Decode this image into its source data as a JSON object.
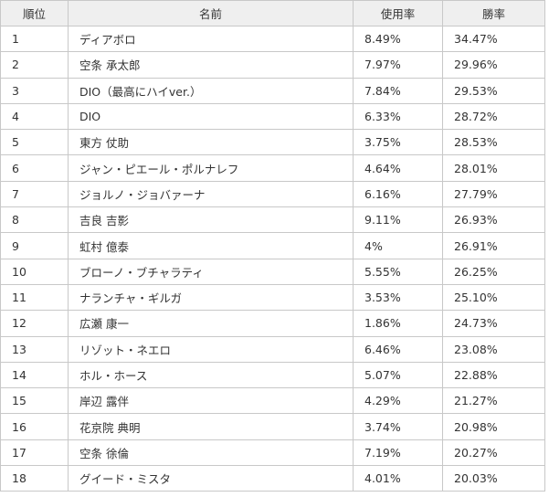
{
  "table": {
    "headers": {
      "rank": "順位",
      "name": "名前",
      "usage": "使用率",
      "win": "勝率"
    },
    "rows": [
      {
        "rank": "1",
        "name": "ディアボロ",
        "usage": "8.49%",
        "win": "34.47%"
      },
      {
        "rank": "2",
        "name": "空条 承太郎",
        "usage": "7.97%",
        "win": "29.96%"
      },
      {
        "rank": "3",
        "name": "DIO（最高にハイver.）",
        "usage": "7.84%",
        "win": "29.53%"
      },
      {
        "rank": "4",
        "name": "DIO",
        "usage": "6.33%",
        "win": "28.72%"
      },
      {
        "rank": "5",
        "name": "東方 仗助",
        "usage": "3.75%",
        "win": "28.53%"
      },
      {
        "rank": "6",
        "name": "ジャン・ピエール・ポルナレフ",
        "usage": "4.64%",
        "win": "28.01%"
      },
      {
        "rank": "7",
        "name": "ジョルノ・ジョバァーナ",
        "usage": "6.16%",
        "win": "27.79%"
      },
      {
        "rank": "8",
        "name": "吉良 吉影",
        "usage": "9.11%",
        "win": "26.93%"
      },
      {
        "rank": "9",
        "name": "虹村 億泰",
        "usage": "4%",
        "win": "26.91%"
      },
      {
        "rank": "10",
        "name": "ブローノ・ブチャラティ",
        "usage": "5.55%",
        "win": "26.25%"
      },
      {
        "rank": "11",
        "name": "ナランチャ・ギルガ",
        "usage": "3.53%",
        "win": "25.10%"
      },
      {
        "rank": "12",
        "name": "広瀬 康一",
        "usage": "1.86%",
        "win": "24.73%"
      },
      {
        "rank": "13",
        "name": "リゾット・ネエロ",
        "usage": "6.46%",
        "win": "23.08%"
      },
      {
        "rank": "14",
        "name": "ホル・ホース",
        "usage": "5.07%",
        "win": "22.88%"
      },
      {
        "rank": "15",
        "name": "岸辺 露伴",
        "usage": "4.29%",
        "win": "21.27%"
      },
      {
        "rank": "16",
        "name": "花京院 典明",
        "usage": "3.74%",
        "win": "20.98%"
      },
      {
        "rank": "17",
        "name": "空条 徐倫",
        "usage": "7.19%",
        "win": "20.27%"
      },
      {
        "rank": "18",
        "name": "グイード・ミスタ",
        "usage": "4.01%",
        "win": "20.03%"
      }
    ]
  }
}
